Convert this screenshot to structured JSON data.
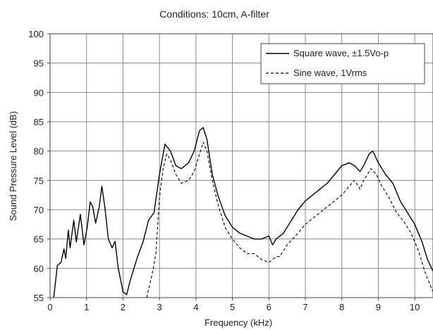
{
  "chart_data": {
    "type": "line",
    "title": "Conditions: 10cm, A-filter",
    "xlabel": "Frequency (kHz)",
    "ylabel": "Sound Pressure Level (dB)",
    "xlim": [
      0,
      10.5
    ],
    "ylim": [
      55,
      100
    ],
    "x_ticks": [
      0,
      1,
      2,
      3,
      4,
      5,
      6,
      7,
      8,
      9,
      10
    ],
    "y_ticks": [
      55,
      60,
      65,
      70,
      75,
      80,
      85,
      90,
      95,
      100
    ],
    "grid": true,
    "legend_position": "top-right",
    "series": [
      {
        "name": "Square wave, ±1.5Vo-p",
        "style": "solid",
        "color": "#000000",
        "points": [
          [
            0.1,
            55
          ],
          [
            0.2,
            60.5
          ],
          [
            0.3,
            61
          ],
          [
            0.38,
            63.3
          ],
          [
            0.43,
            61.7
          ],
          [
            0.5,
            66.5
          ],
          [
            0.55,
            63.5
          ],
          [
            0.65,
            68.2
          ],
          [
            0.72,
            64.5
          ],
          [
            0.83,
            69.2
          ],
          [
            0.93,
            64
          ],
          [
            1.02,
            67
          ],
          [
            1.1,
            71.3
          ],
          [
            1.17,
            70.5
          ],
          [
            1.25,
            67.7
          ],
          [
            1.35,
            70.5
          ],
          [
            1.42,
            74
          ],
          [
            1.5,
            70.5
          ],
          [
            1.6,
            65
          ],
          [
            1.7,
            63.5
          ],
          [
            1.78,
            64.6
          ],
          [
            1.87,
            60
          ],
          [
            2.0,
            56
          ],
          [
            2.1,
            55.5
          ],
          [
            2.2,
            58
          ],
          [
            2.4,
            62
          ],
          [
            2.55,
            64.5
          ],
          [
            2.7,
            68.2
          ],
          [
            2.85,
            69.5
          ],
          [
            3.0,
            76
          ],
          [
            3.15,
            81.2
          ],
          [
            3.3,
            80
          ],
          [
            3.45,
            77.5
          ],
          [
            3.6,
            77
          ],
          [
            3.8,
            78
          ],
          [
            3.95,
            80
          ],
          [
            4.1,
            83.5
          ],
          [
            4.2,
            84
          ],
          [
            4.3,
            82
          ],
          [
            4.45,
            76
          ],
          [
            4.6,
            72.5
          ],
          [
            4.8,
            69
          ],
          [
            5.0,
            67
          ],
          [
            5.2,
            66
          ],
          [
            5.4,
            65.5
          ],
          [
            5.6,
            65
          ],
          [
            5.8,
            65
          ],
          [
            6.0,
            65.5
          ],
          [
            6.1,
            64
          ],
          [
            6.2,
            65
          ],
          [
            6.4,
            66
          ],
          [
            6.6,
            68
          ],
          [
            6.8,
            70
          ],
          [
            7.0,
            71.5
          ],
          [
            7.2,
            72.5
          ],
          [
            7.4,
            73.5
          ],
          [
            7.6,
            74.5
          ],
          [
            7.8,
            76
          ],
          [
            8.0,
            77.5
          ],
          [
            8.2,
            78
          ],
          [
            8.35,
            77.5
          ],
          [
            8.5,
            76.5
          ],
          [
            8.6,
            77.5
          ],
          [
            8.75,
            79.5
          ],
          [
            8.85,
            80
          ],
          [
            9.0,
            78
          ],
          [
            9.2,
            76
          ],
          [
            9.4,
            74.5
          ],
          [
            9.6,
            71.5
          ],
          [
            9.8,
            69.5
          ],
          [
            10.0,
            67.5
          ],
          [
            10.2,
            64.5
          ],
          [
            10.35,
            61.5
          ],
          [
            10.5,
            59.5
          ]
        ]
      },
      {
        "name": "Sine wave, 1Vrms",
        "style": "dashed",
        "color": "#000000",
        "points": [
          [
            2.65,
            55
          ],
          [
            2.8,
            59
          ],
          [
            2.9,
            62.5
          ],
          [
            3.0,
            72
          ],
          [
            3.1,
            77
          ],
          [
            3.2,
            79.5
          ],
          [
            3.3,
            78.5
          ],
          [
            3.45,
            76
          ],
          [
            3.6,
            74.5
          ],
          [
            3.8,
            75
          ],
          [
            3.95,
            76.5
          ],
          [
            4.1,
            79.5
          ],
          [
            4.2,
            81.5
          ],
          [
            4.3,
            80
          ],
          [
            4.45,
            75
          ],
          [
            4.6,
            71
          ],
          [
            4.8,
            67
          ],
          [
            5.0,
            65
          ],
          [
            5.2,
            63.5
          ],
          [
            5.4,
            62.5
          ],
          [
            5.6,
            62.5
          ],
          [
            5.8,
            61.5
          ],
          [
            6.0,
            61
          ],
          [
            6.1,
            61.5
          ],
          [
            6.2,
            62
          ],
          [
            6.3,
            62
          ],
          [
            6.5,
            64
          ],
          [
            6.8,
            66
          ],
          [
            7.0,
            67.5
          ],
          [
            7.2,
            68.5
          ],
          [
            7.4,
            69.5
          ],
          [
            7.6,
            70.5
          ],
          [
            7.8,
            71.5
          ],
          [
            8.0,
            72.5
          ],
          [
            8.2,
            74
          ],
          [
            8.35,
            75
          ],
          [
            8.5,
            73.5
          ],
          [
            8.6,
            75
          ],
          [
            8.8,
            77
          ],
          [
            8.95,
            76
          ],
          [
            9.1,
            74
          ],
          [
            9.3,
            72
          ],
          [
            9.5,
            69.5
          ],
          [
            9.7,
            68
          ],
          [
            9.9,
            66
          ],
          [
            10.1,
            63
          ],
          [
            10.3,
            59
          ],
          [
            10.5,
            56
          ]
        ]
      }
    ]
  }
}
